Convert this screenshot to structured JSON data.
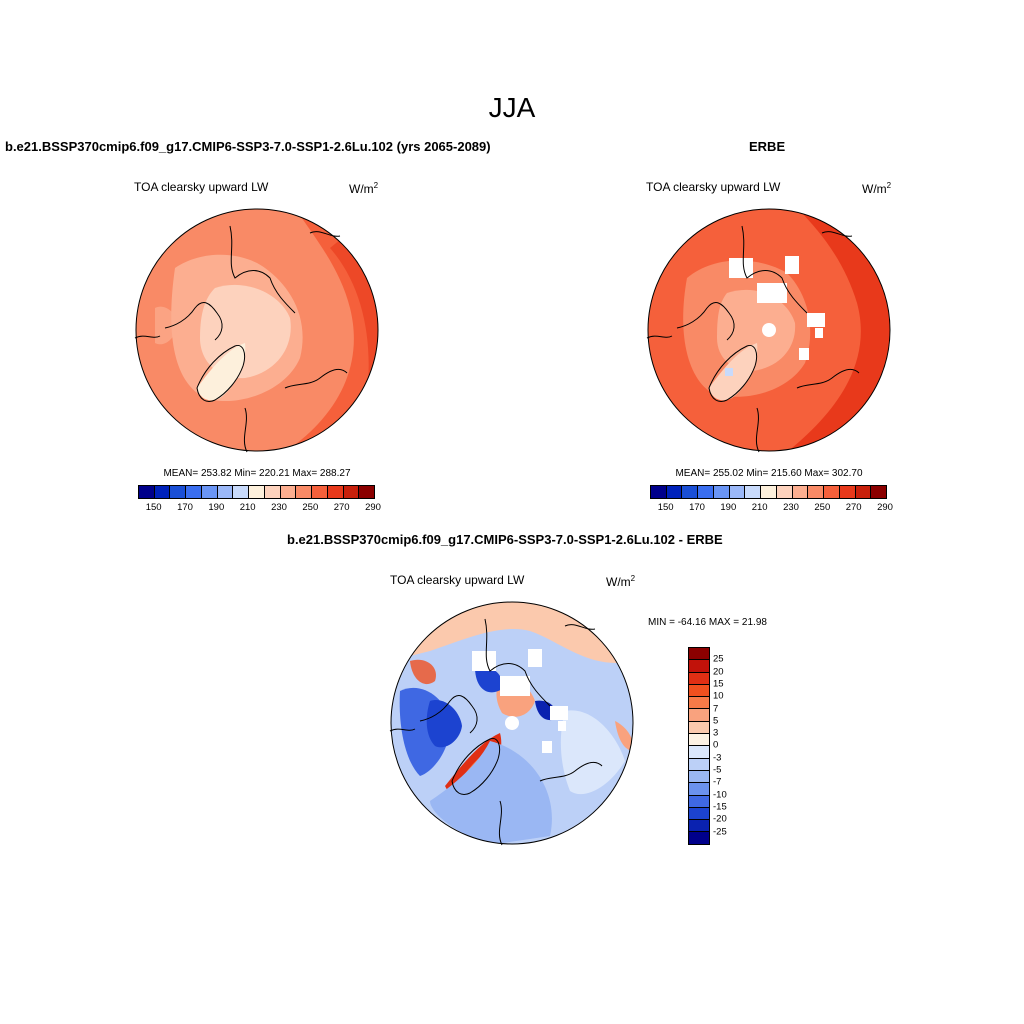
{
  "season": "JJA",
  "unit_base": "W/m",
  "unit_exp": "2",
  "panels": {
    "model": {
      "title": "b.e21.BSSP370cmip6.f09_g17.CMIP6-SSP3-7.0-SSP1-2.6Lu.102 (yrs 2065-2089)",
      "variable": "TOA clearsky upward LW",
      "stats": "MEAN= 253.82  Min= 220.21  Max= 288.27"
    },
    "obs": {
      "title": "ERBE",
      "variable": "TOA clearsky upward LW",
      "stats": "MEAN= 255.02  Min= 215.60  Max= 302.70"
    },
    "diff": {
      "title": "b.e21.BSSP370cmip6.f09_g17.CMIP6-SSP3-7.0-SSP1-2.6Lu.102 - ERBE",
      "variable": "TOA clearsky upward LW",
      "stats": "MIN = -64.16 MAX =  21.98"
    }
  },
  "colorbars": {
    "absolute": {
      "colors": [
        "#00008b",
        "#0022bb",
        "#1a4fd6",
        "#3a6ef0",
        "#6a95f5",
        "#9bb8f8",
        "#c8dafb",
        "#fdf0dc",
        "#fdd2bd",
        "#fcae90",
        "#f98a66",
        "#f5603b",
        "#e8391b",
        "#c8200b",
        "#8b0000"
      ],
      "tick_labels": [
        "150",
        "170",
        "190",
        "210",
        "230",
        "250",
        "270",
        "290"
      ]
    },
    "difference": {
      "colors": [
        "#8b0000",
        "#c1120a",
        "#e02f14",
        "#f0501f",
        "#f77a48",
        "#f9a27e",
        "#fbc9ad",
        "#fdf2e3",
        "#dbe7fb",
        "#bcd0f7",
        "#9ab7f3",
        "#6b92ee",
        "#3f68e3",
        "#1c43d0",
        "#0a22b0",
        "#00008b"
      ],
      "tick_labels": [
        "25",
        "20",
        "15",
        "10",
        "7",
        "5",
        "3",
        "0",
        "-3",
        "-5",
        "-7",
        "-10",
        "-15",
        "-20",
        "-25"
      ]
    }
  }
}
